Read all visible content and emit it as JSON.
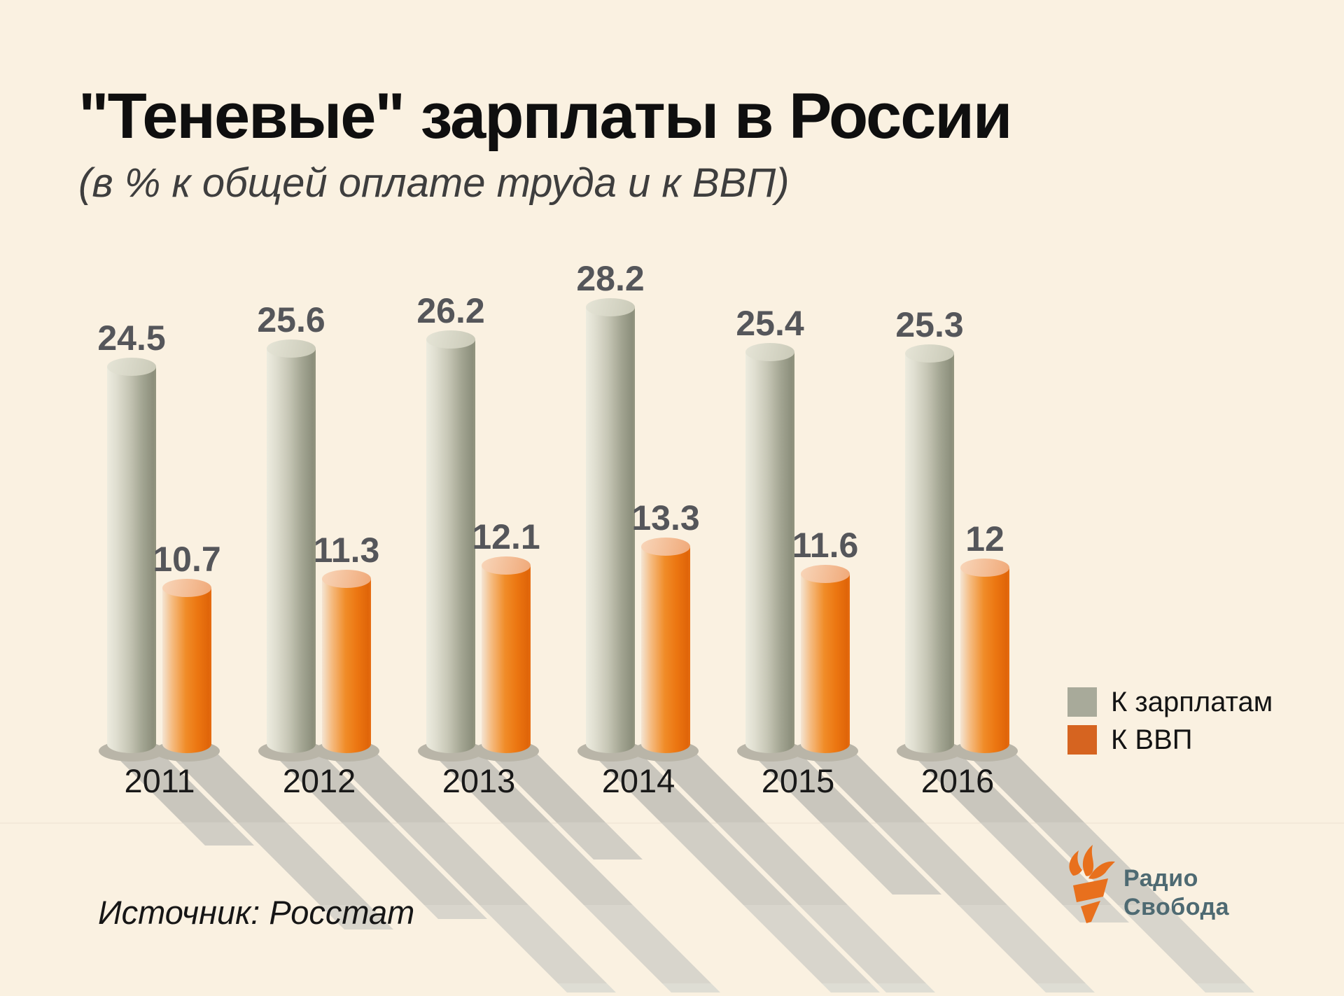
{
  "title": "\"Теневые\" зарплаты в России",
  "subtitle": "(в % к общей оплате труда и к ВВП)",
  "source": "Источник: Росстат",
  "legend": {
    "items": [
      {
        "label": "К зарплатам",
        "color": "#a8aa9a"
      },
      {
        "label": "К ВВП",
        "color": "#d66420"
      }
    ]
  },
  "logo": {
    "line1": "Радио",
    "line2": "Свобода"
  },
  "colors": {
    "background": "#faf1e1",
    "bar_gray": "#a8aa9a",
    "bar_orange": "#e8761a",
    "value_label": "#55565a",
    "logo_text": "#4e6a72",
    "logo_flame": "#e8701d"
  },
  "chart_data": {
    "type": "bar",
    "title": "\"Теневые\" зарплаты в России",
    "subtitle": "(в % к общей оплате труда и к ВВП)",
    "categories": [
      "2011",
      "2012",
      "2013",
      "2014",
      "2015",
      "2016"
    ],
    "series": [
      {
        "name": "К зарплатам",
        "color": "#a8aa9a",
        "values": [
          24.5,
          25.6,
          26.2,
          28.2,
          25.4,
          25.3
        ],
        "labels": [
          "24.5",
          "25.6",
          "26.2",
          "28.2",
          "25.4",
          "25.3"
        ]
      },
      {
        "name": "К ВВП",
        "color": "#e8761a",
        "values": [
          10.7,
          11.3,
          12.1,
          13.3,
          11.6,
          12
        ],
        "labels": [
          "10.7",
          "11.3",
          "12.1",
          "13.3",
          "11.6",
          "12"
        ]
      }
    ],
    "unit": "%",
    "ylim": [
      0,
      30
    ],
    "grid": false,
    "legend_position": "right",
    "style": "3d-cylinder-bars-with-cast-shadows"
  }
}
